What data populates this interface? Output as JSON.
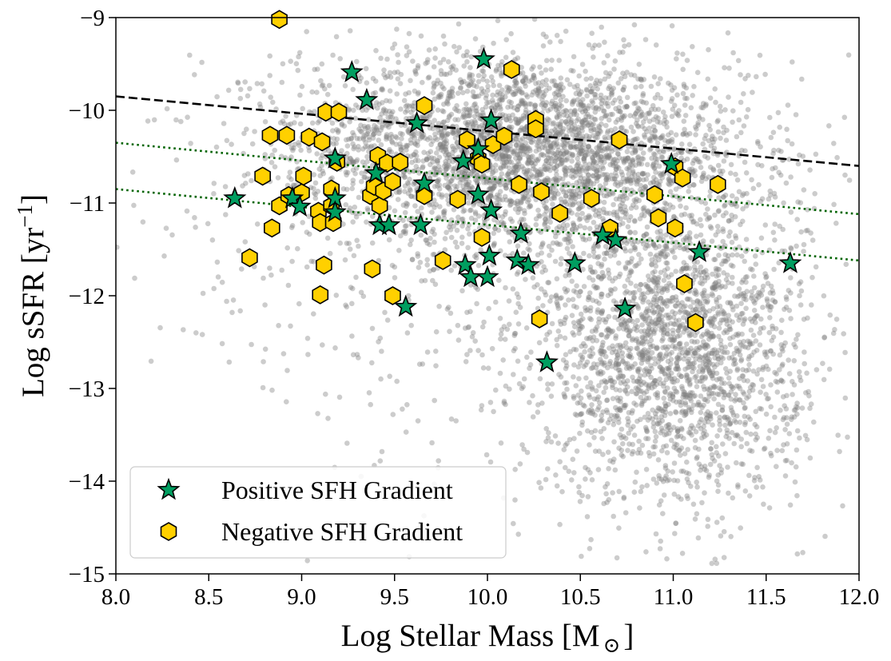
{
  "chart_data": {
    "type": "scatter",
    "title": "",
    "xlabel": "Log Stellar Mass [M",
    "xlabel_sub": "⊙",
    "xlabel_close": "]",
    "ylabel": "Log sSFR [yr",
    "ylabel_sup": "−1",
    "ylabel_close": "]",
    "xlim": [
      8.0,
      12.0
    ],
    "ylim": [
      -15,
      -9
    ],
    "xticks": [
      8.0,
      8.5,
      9.0,
      9.5,
      10.0,
      10.5,
      11.0,
      11.5,
      12.0
    ],
    "xtick_labels": [
      "8.0",
      "8.5",
      "9.0",
      "9.5",
      "10.0",
      "10.5",
      "11.0",
      "11.5",
      "12.0"
    ],
    "yticks": [
      -9,
      -10,
      -11,
      -12,
      -13,
      -14,
      -15
    ],
    "ytick_labels": [
      "−9",
      "−10",
      "−11",
      "−12",
      "−13",
      "−14",
      "−15"
    ],
    "colors": {
      "background_points": "#808080",
      "positive": "#009e60",
      "negative": "#ffd000",
      "sfms_line": "#000000",
      "offset_lines": "#006400"
    },
    "reference_lines": [
      {
        "name": "star-forming main sequence",
        "style": "dashed",
        "color": "#000000",
        "x": [
          8.0,
          12.0
        ],
        "y": [
          -9.85,
          -10.6
        ]
      },
      {
        "name": "main sequence offset 1",
        "style": "dotted",
        "color": "#006400",
        "x": [
          8.0,
          12.0
        ],
        "y": [
          -10.35,
          -11.12
        ]
      },
      {
        "name": "main sequence offset 2",
        "style": "dotted",
        "color": "#006400",
        "x": [
          8.0,
          12.0
        ],
        "y": [
          -10.85,
          -11.62
        ]
      }
    ],
    "background_population": {
      "description": "gray field galaxy sample",
      "n_points": 6000,
      "components": [
        {
          "weight": 0.6,
          "x_mean": 10.2,
          "x_sd": 0.6,
          "y_mean": -10.45,
          "y_sd": 0.5,
          "slope": -0.12
        },
        {
          "weight": 0.4,
          "x_mean": 11.0,
          "x_sd": 0.35,
          "y_mean": -12.6,
          "y_sd": 0.8,
          "slope": 0.0
        },
        {
          "weight": 0.12,
          "x_mean": 10.0,
          "x_sd": 0.9,
          "y_mean": -11.5,
          "y_sd": 1.2,
          "slope": 0.0
        }
      ]
    },
    "series": [
      {
        "name": "Positive SFH Gradient",
        "marker": "star",
        "points": [
          {
            "x": 8.64,
            "y": -10.95
          },
          {
            "x": 8.95,
            "y": -10.95
          },
          {
            "x": 8.99,
            "y": -11.04
          },
          {
            "x": 9.18,
            "y": -10.52
          },
          {
            "x": 9.18,
            "y": -10.95
          },
          {
            "x": 9.18,
            "y": -11.1
          },
          {
            "x": 9.27,
            "y": -9.59
          },
          {
            "x": 9.35,
            "y": -9.89
          },
          {
            "x": 9.4,
            "y": -10.68
          },
          {
            "x": 9.42,
            "y": -11.24
          },
          {
            "x": 9.47,
            "y": -11.24
          },
          {
            "x": 9.56,
            "y": -12.12
          },
          {
            "x": 9.62,
            "y": -10.14
          },
          {
            "x": 9.64,
            "y": -11.24
          },
          {
            "x": 9.66,
            "y": -10.79
          },
          {
            "x": 9.87,
            "y": -10.55
          },
          {
            "x": 9.88,
            "y": -11.67
          },
          {
            "x": 9.91,
            "y": -11.8
          },
          {
            "x": 9.95,
            "y": -10.42
          },
          {
            "x": 9.95,
            "y": -10.91
          },
          {
            "x": 9.98,
            "y": -9.45
          },
          {
            "x": 10.0,
            "y": -11.8
          },
          {
            "x": 10.01,
            "y": -11.57
          },
          {
            "x": 10.02,
            "y": -10.11
          },
          {
            "x": 10.02,
            "y": -11.08
          },
          {
            "x": 10.16,
            "y": -11.62
          },
          {
            "x": 10.18,
            "y": -11.33
          },
          {
            "x": 10.22,
            "y": -11.67
          },
          {
            "x": 10.32,
            "y": -12.72
          },
          {
            "x": 10.47,
            "y": -11.65
          },
          {
            "x": 10.62,
            "y": -11.35
          },
          {
            "x": 10.69,
            "y": -11.4
          },
          {
            "x": 10.74,
            "y": -12.14
          },
          {
            "x": 10.99,
            "y": -10.58
          },
          {
            "x": 11.14,
            "y": -11.53
          },
          {
            "x": 11.63,
            "y": -11.65
          }
        ]
      },
      {
        "name": "Negative SFH Gradient",
        "marker": "hexagon",
        "points": [
          {
            "x": 8.72,
            "y": -11.59
          },
          {
            "x": 8.79,
            "y": -10.71
          },
          {
            "x": 8.83,
            "y": -10.27
          },
          {
            "x": 8.84,
            "y": -11.27
          },
          {
            "x": 8.88,
            "y": -11.03
          },
          {
            "x": 8.88,
            "y": -9.02
          },
          {
            "x": 8.92,
            "y": -10.27
          },
          {
            "x": 8.93,
            "y": -10.92
          },
          {
            "x": 9.0,
            "y": -10.89
          },
          {
            "x": 9.01,
            "y": -10.71
          },
          {
            "x": 9.04,
            "y": -10.29
          },
          {
            "x": 9.09,
            "y": -11.09
          },
          {
            "x": 9.1,
            "y": -11.21
          },
          {
            "x": 9.1,
            "y": -11.99
          },
          {
            "x": 9.11,
            "y": -10.34
          },
          {
            "x": 9.12,
            "y": -11.67
          },
          {
            "x": 9.13,
            "y": -10.02
          },
          {
            "x": 9.16,
            "y": -10.85
          },
          {
            "x": 9.16,
            "y": -11.03
          },
          {
            "x": 9.17,
            "y": -11.21
          },
          {
            "x": 9.19,
            "y": -10.56
          },
          {
            "x": 9.2,
            "y": -10.02
          },
          {
            "x": 9.37,
            "y": -10.92
          },
          {
            "x": 9.38,
            "y": -11.71
          },
          {
            "x": 9.39,
            "y": -10.82
          },
          {
            "x": 9.41,
            "y": -10.49
          },
          {
            "x": 9.42,
            "y": -11.03
          },
          {
            "x": 9.44,
            "y": -10.87
          },
          {
            "x": 9.46,
            "y": -10.57
          },
          {
            "x": 9.49,
            "y": -10.77
          },
          {
            "x": 9.49,
            "y": -12.0
          },
          {
            "x": 9.53,
            "y": -10.56
          },
          {
            "x": 9.66,
            "y": -9.95
          },
          {
            "x": 9.66,
            "y": -10.92
          },
          {
            "x": 9.76,
            "y": -11.62
          },
          {
            "x": 9.84,
            "y": -10.96
          },
          {
            "x": 9.89,
            "y": -10.32
          },
          {
            "x": 9.95,
            "y": -10.52
          },
          {
            "x": 9.97,
            "y": -10.58
          },
          {
            "x": 9.97,
            "y": -11.37
          },
          {
            "x": 10.03,
            "y": -10.37
          },
          {
            "x": 10.09,
            "y": -10.28
          },
          {
            "x": 10.13,
            "y": -9.56
          },
          {
            "x": 10.17,
            "y": -10.8
          },
          {
            "x": 10.26,
            "y": -10.1
          },
          {
            "x": 10.26,
            "y": -10.2
          },
          {
            "x": 10.28,
            "y": -12.25
          },
          {
            "x": 10.29,
            "y": -10.88
          },
          {
            "x": 10.39,
            "y": -11.11
          },
          {
            "x": 10.56,
            "y": -10.95
          },
          {
            "x": 10.66,
            "y": -11.27
          },
          {
            "x": 10.71,
            "y": -10.32
          },
          {
            "x": 10.9,
            "y": -10.91
          },
          {
            "x": 10.92,
            "y": -11.16
          },
          {
            "x": 11.01,
            "y": -10.61
          },
          {
            "x": 11.01,
            "y": -11.27
          },
          {
            "x": 11.05,
            "y": -10.73
          },
          {
            "x": 11.06,
            "y": -11.87
          },
          {
            "x": 11.12,
            "y": -12.29
          },
          {
            "x": 11.24,
            "y": -10.8
          }
        ]
      }
    ],
    "legend": {
      "location": "lower-left",
      "entries": [
        "Positive SFH Gradient",
        "Negative SFH Gradient"
      ]
    }
  }
}
